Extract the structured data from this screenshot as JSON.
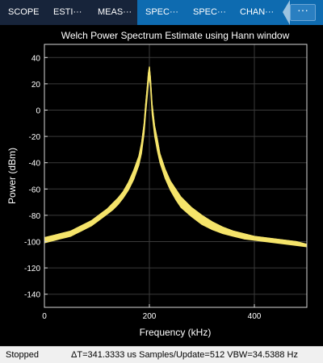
{
  "tabs": [
    {
      "label": "SCOPE",
      "active": false
    },
    {
      "label": "ESTI···",
      "active": false
    },
    {
      "label": "MEAS···",
      "active": false
    },
    {
      "label": "SPEC···",
      "active": true
    },
    {
      "label": "SPEC···",
      "active": true
    },
    {
      "label": "CHAN···",
      "active": true
    }
  ],
  "more_button": {
    "label": "···",
    "icon": "more-icon"
  },
  "status": {
    "state": "Stopped",
    "info": "ΔT=341.3333 us  Samples/Update=512  VBW=34.5388 Hz"
  },
  "chart_data": {
    "type": "line",
    "title": "Welch Power Spectrum Estimate using Hann window",
    "xlabel": "Frequency (kHz)",
    "ylabel": "Power (dBm)",
    "xlim": [
      0,
      500
    ],
    "ylim": [
      -150,
      50
    ],
    "xticks": [
      0,
      200,
      400
    ],
    "yticks": [
      40,
      20,
      0,
      -20,
      -40,
      -60,
      -80,
      -100,
      -120,
      -140
    ],
    "grid": true,
    "line_color": "#f5e46a",
    "series": [
      {
        "x": [
          0,
          10,
          20,
          30,
          40,
          50,
          60,
          70,
          80,
          90,
          100,
          110,
          120,
          130,
          140,
          150,
          160,
          170,
          180,
          185,
          190,
          193,
          196,
          198,
          200,
          202,
          205,
          210,
          215,
          220,
          230,
          240,
          250,
          260,
          280,
          300,
          320,
          340,
          360,
          380,
          400,
          420,
          440,
          460,
          480,
          500
        ],
        "upper": [
          -97,
          -96,
          -95,
          -94,
          -93,
          -92,
          -90,
          -88,
          -86,
          -84,
          -81,
          -78,
          -75,
          -71,
          -67,
          -62,
          -55,
          -46,
          -35,
          -25,
          -10,
          5,
          18,
          28,
          33,
          25,
          5,
          -12,
          -22,
          -33,
          -45,
          -54,
          -60,
          -66,
          -74,
          -80,
          -85,
          -89,
          -92,
          -94,
          -96,
          -97,
          -98,
          -99,
          -100,
          -102
        ],
        "lower": [
          -101,
          -100,
          -99,
          -98,
          -97,
          -96,
          -94,
          -92,
          -90,
          -88,
          -85,
          -82,
          -79,
          -76,
          -72,
          -67,
          -61,
          -53,
          -42,
          -33,
          -18,
          -3,
          10,
          20,
          25,
          18,
          -3,
          -20,
          -31,
          -40,
          -52,
          -61,
          -68,
          -74,
          -81,
          -87,
          -91,
          -94,
          -96,
          -98,
          -99,
          -100,
          -101,
          -102,
          -103,
          -104
        ]
      }
    ]
  }
}
